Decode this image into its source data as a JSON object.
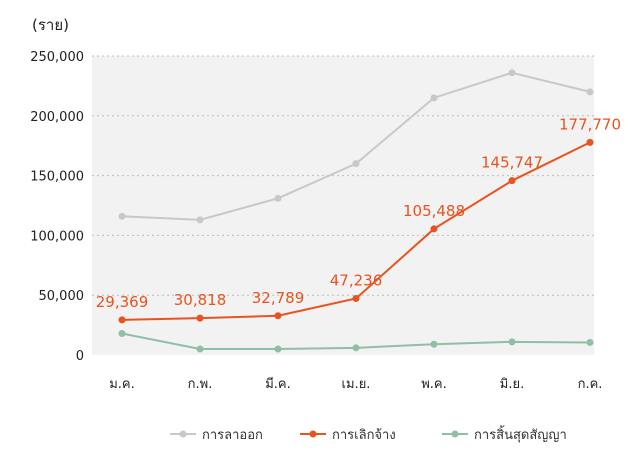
{
  "chart_data": {
    "type": "line",
    "unit_label": "(ราย)",
    "categories": [
      "ม.ค.",
      "ก.พ.",
      "มี.ค.",
      "เม.ย.",
      "พ.ค.",
      "มิ.ย.",
      "ก.ค."
    ],
    "ylim": [
      0,
      250000
    ],
    "yticks": [
      "0",
      "50,000",
      "100,000",
      "150,000",
      "200,000",
      "250,000"
    ],
    "ytick_values": [
      0,
      50000,
      100000,
      150000,
      200000,
      250000
    ],
    "grid": true,
    "legend_position": "bottom-right",
    "series": [
      {
        "name": "การลาออก",
        "color": "#c8c8c8",
        "values": [
          116000,
          113000,
          131000,
          160000,
          215000,
          236000,
          220000
        ],
        "labels": []
      },
      {
        "name": "การเลิกจ้าง",
        "color": "#e8531f",
        "values": [
          29369,
          30818,
          32789,
          47236,
          105488,
          145747,
          177770
        ],
        "labels": [
          "29,369",
          "30,818",
          "32,789",
          "47,236",
          "105,488",
          "145,747",
          "177,770"
        ]
      },
      {
        "name": "การสิ้นสุดสัญญา",
        "color": "#8fbfa6",
        "values": [
          18000,
          5000,
          5000,
          6000,
          9000,
          11000,
          10500
        ],
        "labels": []
      }
    ]
  }
}
